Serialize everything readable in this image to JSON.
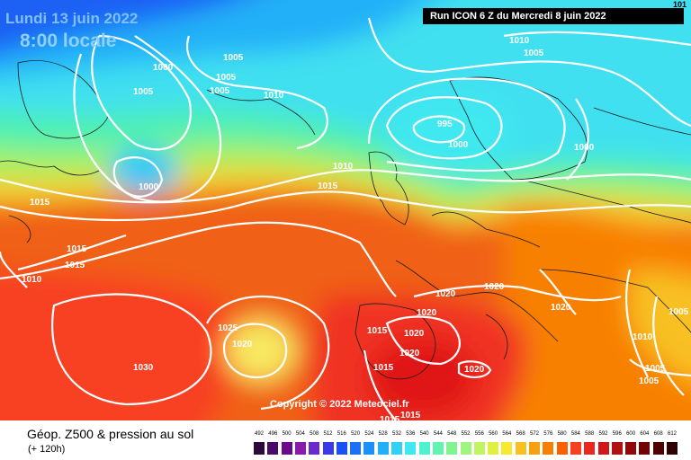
{
  "header": {
    "date": "Lundi 13 juin 2022",
    "time": "8:00 locale",
    "run": "Run ICON 6 Z du Mercredi 8 juin 2022",
    "corner_partial": "101"
  },
  "footer": {
    "copyright": "Copyright © 2022 Meteociel.fr",
    "product_title": "Géop. Z500 & pression au sol",
    "lead_time": "(+ 120h)"
  },
  "legend": {
    "labels": [
      "492",
      "496",
      "500",
      "504",
      "508",
      "512",
      "516",
      "520",
      "524",
      "528",
      "532",
      "536",
      "540",
      "544",
      "548",
      "552",
      "556",
      "560",
      "564",
      "568",
      "572",
      "576",
      "580",
      "584",
      "588",
      "592",
      "596",
      "600",
      "604",
      "608",
      "612"
    ],
    "colors": [
      "#2a0a3a",
      "#4a0a6a",
      "#6a0a8a",
      "#8a1aaa",
      "#6a2acc",
      "#3a3ae8",
      "#1a50f4",
      "#1a70f8",
      "#1a90fa",
      "#20b0fa",
      "#30d0f8",
      "#40e8f0",
      "#50f0d0",
      "#60f4b0",
      "#80f490",
      "#a0f480",
      "#c0f460",
      "#e0f040",
      "#f8e830",
      "#f8c020",
      "#f8a010",
      "#f88000",
      "#f86000",
      "#f84020",
      "#e82820",
      "#d01818",
      "#b01010",
      "#900808",
      "#700404",
      "#500000",
      "#300000"
    ]
  },
  "pressure_labels": [
    {
      "id": "l1",
      "text": "1000"
    },
    {
      "id": "l2",
      "text": "1005"
    },
    {
      "id": "l3",
      "text": "1005"
    },
    {
      "id": "l4",
      "text": "1005"
    },
    {
      "id": "l5",
      "text": "1005"
    },
    {
      "id": "l6",
      "text": "1010"
    },
    {
      "id": "l7",
      "text": "1000"
    },
    {
      "id": "l8",
      "text": "1015"
    },
    {
      "id": "l9",
      "text": "1010"
    },
    {
      "id": "l10",
      "text": "1015"
    },
    {
      "id": "l11",
      "text": "1015"
    },
    {
      "id": "l12",
      "text": "1015"
    },
    {
      "id": "l13",
      "text": "1010"
    },
    {
      "id": "l14",
      "text": "995"
    },
    {
      "id": "l15",
      "text": "1000"
    },
    {
      "id": "l16",
      "text": "1010"
    },
    {
      "id": "l17",
      "text": "1005"
    },
    {
      "id": "l18",
      "text": "1000"
    },
    {
      "id": "l19",
      "text": "1020"
    },
    {
      "id": "l20",
      "text": "1020"
    },
    {
      "id": "l21",
      "text": "1020"
    },
    {
      "id": "l22",
      "text": "1020"
    },
    {
      "id": "l23",
      "text": "1015"
    },
    {
      "id": "l24",
      "text": "1020"
    },
    {
      "id": "l25",
      "text": "1020"
    },
    {
      "id": "l26",
      "text": "1015"
    },
    {
      "id": "l27",
      "text": "1020"
    },
    {
      "id": "l28",
      "text": "1025"
    },
    {
      "id": "l29",
      "text": "1020"
    },
    {
      "id": "l30",
      "text": "1030"
    },
    {
      "id": "l31",
      "text": "1015"
    },
    {
      "id": "l32",
      "text": "1015"
    },
    {
      "id": "l33",
      "text": "1010"
    },
    {
      "id": "l34",
      "text": "1005"
    },
    {
      "id": "l35",
      "text": "1005"
    },
    {
      "id": "l36",
      "text": "1005"
    }
  ]
}
